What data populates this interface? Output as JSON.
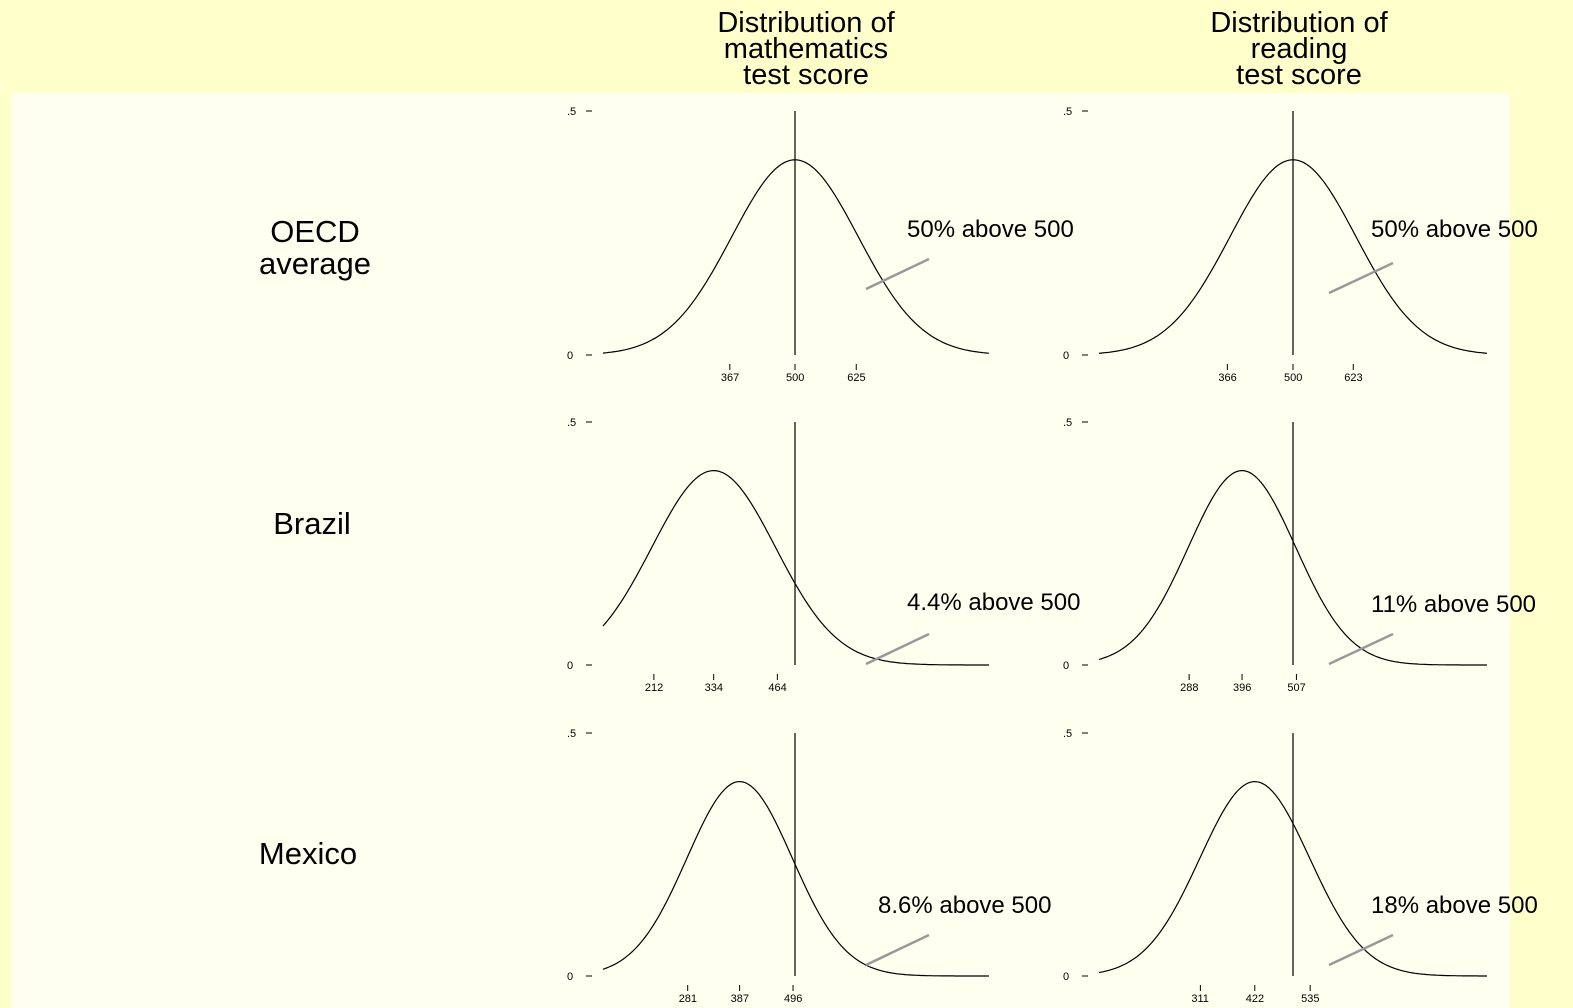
{
  "colors": {
    "background": "#ffffcc",
    "panel": "#fffff0",
    "curve": "#000000",
    "pointer": "#999999"
  },
  "column_titles": [
    "Distribution of\nmathematics\ntest score",
    "Distribution of\nreading\ntest score"
  ],
  "row_labels": [
    "OECD\naverage",
    "Brazil",
    "Mexico"
  ],
  "chart_data": [
    {
      "type": "line",
      "row": "OECD average",
      "subject": "mathematics",
      "ylim": [
        0,
        0.5
      ],
      "y_ticks": [
        ".5",
        "0"
      ],
      "mean": 500,
      "x_ticks": [
        367,
        500,
        625
      ],
      "reference_line": 500,
      "annotation": "50% above 500"
    },
    {
      "type": "line",
      "row": "OECD average",
      "subject": "reading",
      "ylim": [
        0,
        0.5
      ],
      "y_ticks": [
        ".5",
        "0"
      ],
      "mean": 500,
      "x_ticks": [
        366,
        500,
        623
      ],
      "reference_line": 500,
      "annotation": "50% above 500"
    },
    {
      "type": "line",
      "row": "Brazil",
      "subject": "mathematics",
      "ylim": [
        0,
        0.5
      ],
      "y_ticks": [
        ".5",
        "0"
      ],
      "mean": 334,
      "x_ticks": [
        212,
        334,
        464
      ],
      "reference_line": 500,
      "annotation": "4.4% above 500"
    },
    {
      "type": "line",
      "row": "Brazil",
      "subject": "reading",
      "ylim": [
        0,
        0.5
      ],
      "y_ticks": [
        ".5",
        "0"
      ],
      "mean": 396,
      "x_ticks": [
        288,
        396,
        507
      ],
      "reference_line": 500,
      "annotation": "11% above 500"
    },
    {
      "type": "line",
      "row": "Mexico",
      "subject": "mathematics",
      "ylim": [
        0,
        0.5
      ],
      "y_ticks": [
        ".5",
        "0"
      ],
      "mean": 387,
      "x_ticks": [
        281,
        387,
        496
      ],
      "reference_line": 500,
      "annotation": "8.6% above 500"
    },
    {
      "type": "line",
      "row": "Mexico",
      "subject": "reading",
      "ylim": [
        0,
        0.5
      ],
      "y_ticks": [
        ".5",
        "0"
      ],
      "mean": 422,
      "x_ticks": [
        311,
        422,
        535
      ],
      "reference_line": 500,
      "annotation": "18% above 500"
    }
  ]
}
